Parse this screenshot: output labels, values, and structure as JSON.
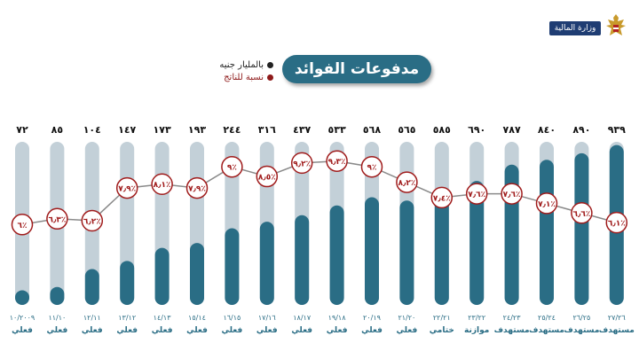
{
  "header": {
    "ministry": "وزارة المالية",
    "title": "مدفوعات الفوائد"
  },
  "legend": {
    "items": [
      {
        "label": "بالمليار جنيه",
        "color": "#222222"
      },
      {
        "label": "نسبة للناتج",
        "color": "#8e1a1a"
      }
    ]
  },
  "colors": {
    "bar_fill": "#2a6d85",
    "bar_track": "#c3d0d8",
    "line": "#8a8a8a",
    "marker_border": "#a01c1c",
    "marker_text": "#a01c1c",
    "value_text": "#111111",
    "label_text": "#2a6d85"
  },
  "chart_data": {
    "type": "bar",
    "categories": [
      "١٠/٢٠٠٩",
      "١١/١٠",
      "١٢/١١",
      "١٣/١٢",
      "١٤/١٣",
      "١٥/١٤",
      "١٦/١٥",
      "١٧/١٦",
      "١٨/١٧",
      "١٩/١٨",
      "٢٠/١٩",
      "٢١/٢٠",
      "٢٢/٢١",
      "٢٣/٢٢",
      "٢٤/٢٣",
      "٢٥/٢٤",
      "٢٦/٢٥",
      "٢٧/٢٦"
    ],
    "value_labels": [
      "٧٢",
      "٨٥",
      "١٠٤",
      "١٤٧",
      "١٧٣",
      "١٩٣",
      "٢٤٤",
      "٣١٦",
      "٤٣٧",
      "٥٣٣",
      "٥٦٨",
      "٥٦٥",
      "٥٨٥",
      "٦٩٠",
      "٧٨٧",
      "٨٤٠",
      "٨٩٠",
      "٩٣٩"
    ],
    "values": [
      72,
      85,
      104,
      147,
      173,
      193,
      244,
      316,
      437,
      533,
      568,
      565,
      585,
      690,
      787,
      840,
      890,
      939
    ],
    "bar_fill_fraction": [
      0.09,
      0.11,
      0.22,
      0.27,
      0.35,
      0.38,
      0.47,
      0.51,
      0.55,
      0.61,
      0.66,
      0.64,
      0.72,
      0.76,
      0.86,
      0.89,
      0.93,
      0.98
    ],
    "ratio_labels": [
      "٦٪",
      "٦٫٣٪",
      "٦٫٢٪",
      "٧٫٩٪",
      "٨٫١٪",
      "٧٫٩٪",
      "٩٪",
      "٨٫٥٪",
      "٩٫٢٪",
      "٩٫٣٪",
      "٩٪",
      "٨٫٢٪",
      "٧٫٤٪",
      "٧٫٦٪",
      "٧٫٦٪",
      "٧٫١٪",
      "٦٫٦٪",
      "٦٫١٪"
    ],
    "ratio_values": [
      6.0,
      6.3,
      6.2,
      7.9,
      8.1,
      7.9,
      9.0,
      8.5,
      9.2,
      9.3,
      9.0,
      8.2,
      7.4,
      7.6,
      7.6,
      7.1,
      6.6,
      6.1
    ],
    "types": [
      "فعلي",
      "فعلي",
      "فعلي",
      "فعلي",
      "فعلي",
      "فعلي",
      "فعلي",
      "فعلي",
      "فعلي",
      "فعلي",
      "فعلي",
      "فعلي",
      "ختامي",
      "موازنة",
      "مستهدف",
      "مستهدف",
      "مستهدف",
      "مستهدف"
    ],
    "series": [
      {
        "name": "بالمليار جنيه"
      },
      {
        "name": "نسبة للناتج"
      }
    ]
  }
}
